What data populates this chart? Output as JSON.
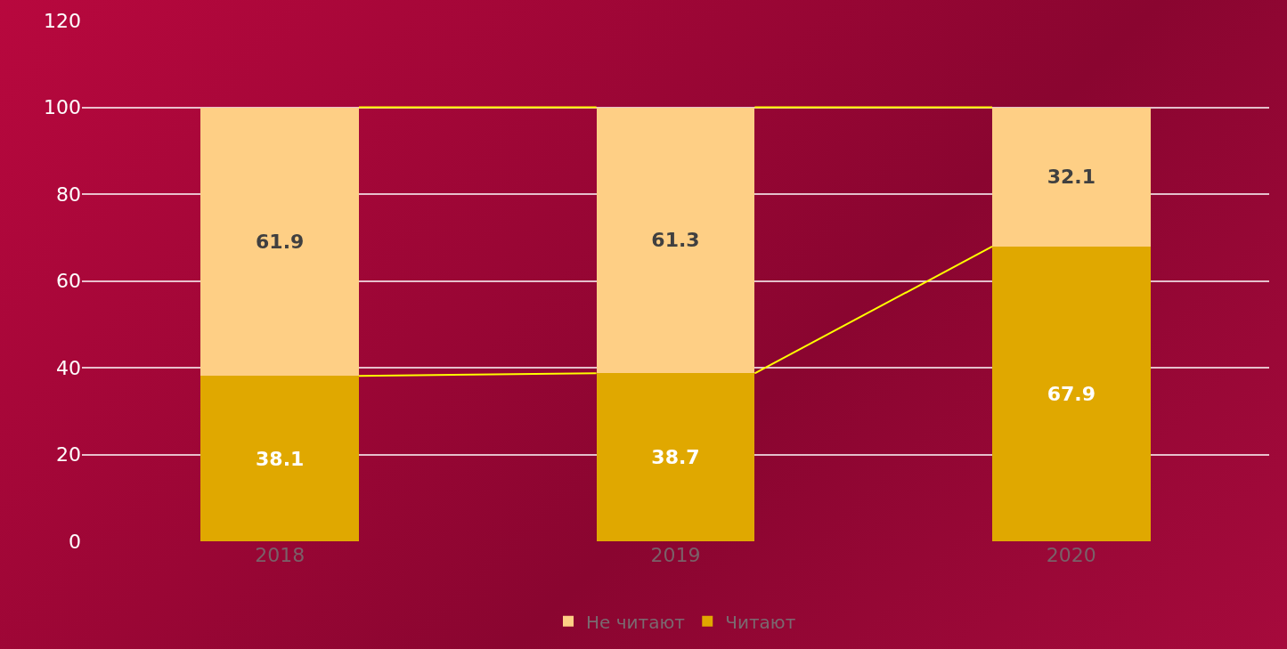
{
  "chart_data": {
    "type": "bar",
    "stacked": true,
    "categories": [
      "2018",
      "2019",
      "2020"
    ],
    "series": [
      {
        "name": "Читают",
        "color": "#e0a800",
        "values": [
          38.1,
          38.7,
          67.9
        ]
      },
      {
        "name": "Не читают",
        "color": "#fecf85",
        "values": [
          61.9,
          61.3,
          32.1
        ]
      }
    ],
    "ylim": [
      0,
      120
    ],
    "yticks": [
      0,
      20,
      40,
      60,
      80,
      100,
      120
    ],
    "grid": "y",
    "legend": "bottom",
    "data_labels": true
  }
}
